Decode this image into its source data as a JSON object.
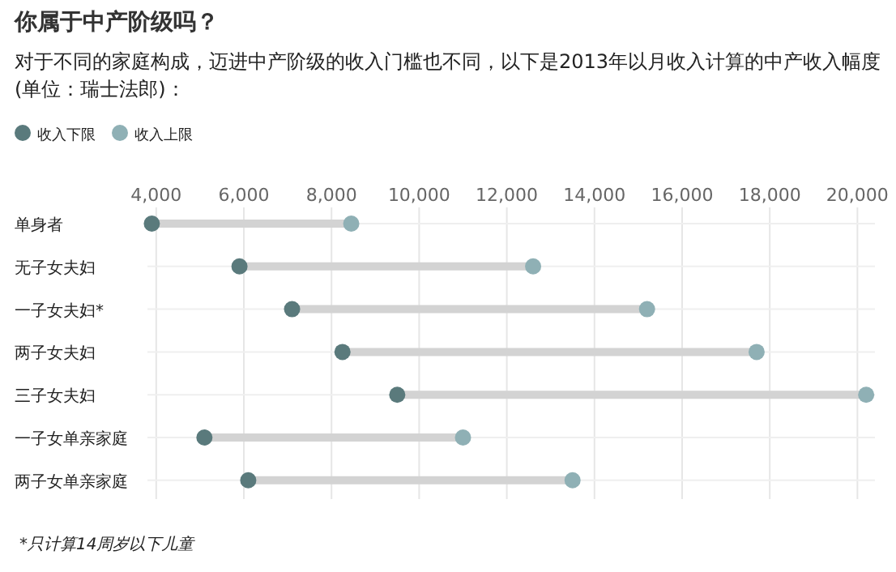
{
  "chart_data": {
    "type": "scatter",
    "orientation": "horizontal",
    "title": "你属于中产阶级吗？",
    "subtitle": "对于不同的家庭构成，迈进中产阶级的收入门槛也不同，以下是2013年以月收入计算的中产收入幅度(单位：瑞士法郎)：",
    "categories": [
      "单身者",
      "无子女夫妇",
      "一子女夫妇*",
      "两子女夫妇",
      "三子女夫妇",
      "一子女单亲家庭",
      "两子女单亲家庭"
    ],
    "series": [
      {
        "name": "收入下限",
        "color": "#5a7a7c",
        "values": [
          3900,
          5900,
          7100,
          8250,
          9500,
          5100,
          6100
        ]
      },
      {
        "name": "收入上限",
        "color": "#8fb0b5",
        "values": [
          8450,
          12600,
          15200,
          17700,
          20200,
          11000,
          13500
        ]
      }
    ],
    "xlim": [
      3800,
      20400
    ],
    "xticks": [
      {
        "value": 4000,
        "label": "4,000"
      },
      {
        "value": 6000,
        "label": "6,000"
      },
      {
        "value": 8000,
        "label": "8,000"
      },
      {
        "value": 10000,
        "label": "10,000"
      },
      {
        "value": 12000,
        "label": "12,000"
      },
      {
        "value": 14000,
        "label": "14,000"
      },
      {
        "value": 16000,
        "label": "16,000"
      },
      {
        "value": 18000,
        "label": "18,000"
      },
      {
        "value": 20000,
        "label": "20,000"
      }
    ],
    "grid": true,
    "legend": "top left",
    "marker": "circle",
    "annotations": [
      "*只计算14周岁以下儿童"
    ]
  }
}
